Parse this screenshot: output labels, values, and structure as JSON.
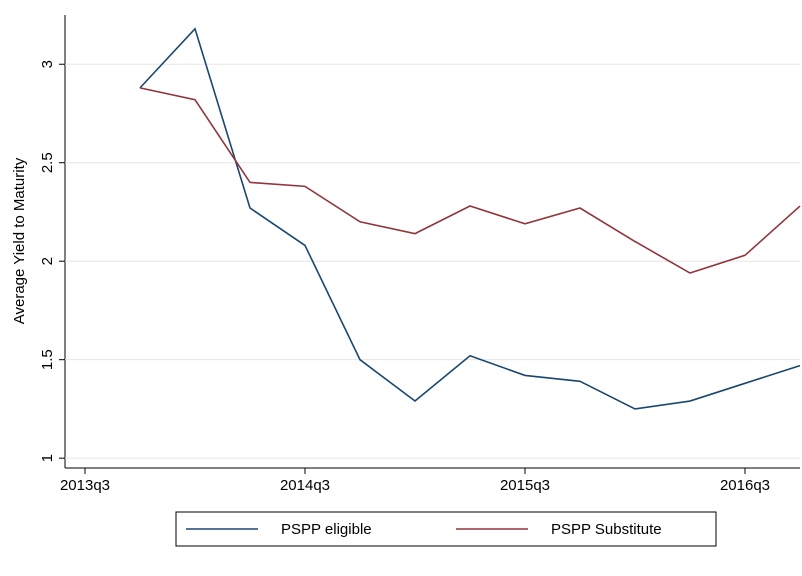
{
  "chart_data": {
    "type": "line",
    "ylabel": "Average Yield to Maturity",
    "categories": [
      "2013q3",
      null,
      null,
      null,
      "2014q3",
      null,
      null,
      null,
      "2015q3",
      null,
      null,
      null,
      "2016q3",
      null
    ],
    "series": [
      {
        "name": "PSPP eligible",
        "color": "#1a476f",
        "values": [
          null,
          2.88,
          3.18,
          2.27,
          2.08,
          1.5,
          1.29,
          1.52,
          1.42,
          1.39,
          1.25,
          1.29,
          1.38,
          1.47
        ]
      },
      {
        "name": "PSPP Substitute",
        "color": "#90353b",
        "values": [
          null,
          2.88,
          2.82,
          2.4,
          2.38,
          2.2,
          2.14,
          2.28,
          2.19,
          2.27,
          2.1,
          1.94,
          2.03,
          2.28
        ]
      }
    ],
    "ylim": [
      0.95,
      3.25
    ],
    "yticks": [
      1,
      1.5,
      2,
      2.5,
      3
    ],
    "grid": true,
    "legend": "bottom"
  }
}
